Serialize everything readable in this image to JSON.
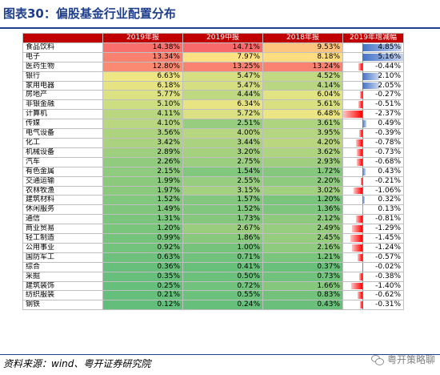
{
  "title": "图表30：偏股基金行业配置分布",
  "columns": [
    "",
    "2019年报",
    "2019中报",
    "2018年报",
    "2019年增减幅"
  ],
  "rows": [
    {
      "name": "食品饮料",
      "y19a": "14.38%",
      "y19h": "14.71%",
      "y18a": "9.53%",
      "delta": "4.85%",
      "d": 4.85
    },
    {
      "name": "电子",
      "y19a": "13.34%",
      "y19h": "7.97%",
      "y18a": "8.18%",
      "delta": "5.16%",
      "d": 5.16
    },
    {
      "name": "医药生物",
      "y19a": "12.80%",
      "y19h": "13.25%",
      "y18a": "13.24%",
      "delta": "-0.44%",
      "d": -0.44
    },
    {
      "name": "银行",
      "y19a": "6.63%",
      "y19h": "5.47%",
      "y18a": "4.52%",
      "delta": "2.10%",
      "d": 2.1
    },
    {
      "name": "家用电器",
      "y19a": "6.18%",
      "y19h": "5.47%",
      "y18a": "4.14%",
      "delta": "2.05%",
      "d": 2.05
    },
    {
      "name": "房地产",
      "y19a": "5.77%",
      "y19h": "4.44%",
      "y18a": "6.04%",
      "delta": "-0.27%",
      "d": -0.27
    },
    {
      "name": "非银金融",
      "y19a": "5.10%",
      "y19h": "6.34%",
      "y18a": "5.61%",
      "delta": "-0.51%",
      "d": -0.51
    },
    {
      "name": "计算机",
      "y19a": "4.11%",
      "y19h": "5.72%",
      "y18a": "6.48%",
      "delta": "-2.37%",
      "d": -2.37
    },
    {
      "name": "传媒",
      "y19a": "4.10%",
      "y19h": "2.51%",
      "y18a": "3.61%",
      "delta": "0.49%",
      "d": 0.49
    },
    {
      "name": "电气设备",
      "y19a": "3.56%",
      "y19h": "4.00%",
      "y18a": "3.95%",
      "delta": "-0.39%",
      "d": -0.39
    },
    {
      "name": "化工",
      "y19a": "3.42%",
      "y19h": "3.44%",
      "y18a": "4.20%",
      "delta": "-0.78%",
      "d": -0.78
    },
    {
      "name": "机械设备",
      "y19a": "2.89%",
      "y19h": "3.20%",
      "y18a": "3.62%",
      "delta": "-0.73%",
      "d": -0.73
    },
    {
      "name": "汽车",
      "y19a": "2.26%",
      "y19h": "2.75%",
      "y18a": "2.93%",
      "delta": "-0.68%",
      "d": -0.68
    },
    {
      "name": "有色金属",
      "y19a": "2.15%",
      "y19h": "1.54%",
      "y18a": "1.72%",
      "delta": "0.43%",
      "d": 0.43
    },
    {
      "name": "交通运输",
      "y19a": "1.99%",
      "y19h": "2.55%",
      "y18a": "2.20%",
      "delta": "-0.21%",
      "d": -0.21
    },
    {
      "name": "农林牧渔",
      "y19a": "1.97%",
      "y19h": "3.15%",
      "y18a": "3.02%",
      "delta": "-1.06%",
      "d": -1.06
    },
    {
      "name": "建筑材料",
      "y19a": "1.52%",
      "y19h": "1.57%",
      "y18a": "1.20%",
      "delta": "0.32%",
      "d": 0.32
    },
    {
      "name": "休闲服务",
      "y19a": "1.49%",
      "y19h": "1.52%",
      "y18a": "1.36%",
      "delta": "0.13%",
      "d": 0.13
    },
    {
      "name": "通信",
      "y19a": "1.31%",
      "y19h": "1.73%",
      "y18a": "2.12%",
      "delta": "-0.81%",
      "d": -0.81
    },
    {
      "name": "商业贸易",
      "y19a": "1.20%",
      "y19h": "2.67%",
      "y18a": "2.49%",
      "delta": "-1.29%",
      "d": -1.29
    },
    {
      "name": "轻工制造",
      "y19a": "0.99%",
      "y19h": "1.86%",
      "y18a": "2.45%",
      "delta": "-1.45%",
      "d": -1.45
    },
    {
      "name": "公用事业",
      "y19a": "0.92%",
      "y19h": "1.00%",
      "y18a": "2.16%",
      "delta": "-1.24%",
      "d": -1.24
    },
    {
      "name": "国防军工",
      "y19a": "0.63%",
      "y19h": "0.71%",
      "y18a": "1.21%",
      "delta": "-0.57%",
      "d": -0.57
    },
    {
      "name": "综合",
      "y19a": "0.36%",
      "y19h": "0.41%",
      "y18a": "0.37%",
      "delta": "-0.02%",
      "d": -0.02
    },
    {
      "name": "采掘",
      "y19a": "0.35%",
      "y19h": "0.50%",
      "y18a": "0.73%",
      "delta": "-0.38%",
      "d": -0.38
    },
    {
      "name": "建筑装饰",
      "y19a": "0.25%",
      "y19h": "0.72%",
      "y18a": "1.66%",
      "delta": "-1.40%",
      "d": -1.4
    },
    {
      "name": "纺织服装",
      "y19a": "0.21%",
      "y19h": "0.55%",
      "y18a": "0.83%",
      "delta": "-0.62%",
      "d": -0.62
    },
    {
      "name": "钢铁",
      "y19a": "0.12%",
      "y19h": "0.24%",
      "y18a": "0.43%",
      "delta": "-0.31%",
      "d": -0.31
    }
  ],
  "source": "资料来源：wind、粤开证券研究院",
  "watermark": "粤开策略聊",
  "colors": {
    "header": "#c00000",
    "title": "#1f3f8c",
    "high": "#f8696b",
    "mid": "#ffeb84",
    "low": "#63be7b",
    "pos_bar": "#4472c4",
    "neg_bar": "#ff0000"
  }
}
